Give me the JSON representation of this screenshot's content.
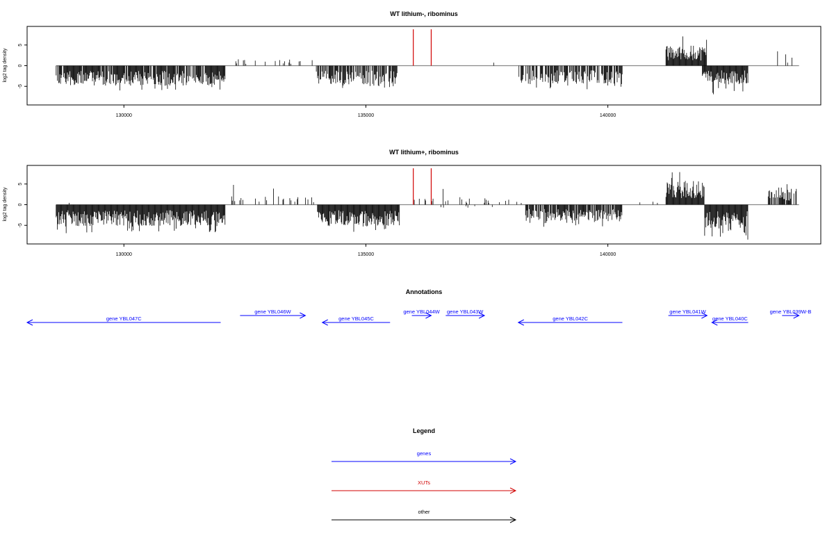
{
  "chart_data": [
    {
      "type": "bar",
      "title": "WT lithium-, ribominus",
      "xlabel": "",
      "ylabel": "log2 tag density",
      "xlim": [
        128000,
        144400
      ],
      "ylim": [
        -9.5,
        9.5
      ],
      "x_ticks": [
        130000,
        135000,
        140000
      ],
      "x_tick_labels": [
        "130000",
        "135000",
        "140000"
      ],
      "y_ticks": [
        -5,
        0,
        5
      ],
      "y_tick_labels": [
        "-5",
        "0",
        "5"
      ],
      "grid": false,
      "segments": [
        {
          "from": 128600,
          "to": 132100,
          "sign": -1,
          "amp": 4.2,
          "spike": 6.0,
          "density": 6
        },
        {
          "from": 128900,
          "to": 128950,
          "sign": 1,
          "amp": 1.5,
          "spike": 1.6,
          "density": 1
        },
        {
          "from": 132300,
          "to": 133900,
          "sign": 1,
          "amp": 1.4,
          "spike": 3.0,
          "density": 0.9
        },
        {
          "from": 133950,
          "to": 135650,
          "sign": -1,
          "amp": 4.0,
          "spike": 5.5,
          "density": 5
        },
        {
          "from": 136400,
          "to": 137700,
          "sign": 1,
          "amp": 0.8,
          "spike": 2.8,
          "density": 0.15
        },
        {
          "from": 138150,
          "to": 140300,
          "sign": -1,
          "amp": 3.8,
          "spike": 6.0,
          "density": 5
        },
        {
          "from": 138550,
          "to": 138600,
          "sign": 1,
          "amp": 2.0,
          "spike": 2.2,
          "density": 1
        },
        {
          "from": 141200,
          "to": 142050,
          "sign": 1,
          "amp": 4.2,
          "spike": 7.5,
          "density": 8
        },
        {
          "from": 141950,
          "to": 142900,
          "sign": -1,
          "amp": 3.8,
          "spike": 7.0,
          "density": 7
        },
        {
          "from": 143300,
          "to": 143900,
          "sign": 1,
          "amp": 2.4,
          "spike": 3.6,
          "density": 0.5
        }
      ],
      "highlights": [
        {
          "x": 135980,
          "value": 8.8
        },
        {
          "x": 136350,
          "value": 8.8
        }
      ],
      "highlight_color": "#d00000",
      "bar_color": "#000000",
      "baseline_color": "#888888"
    },
    {
      "type": "bar",
      "title": "WT lithium+, ribominus",
      "xlabel": "",
      "ylabel": "log2 tag density",
      "xlim": [
        128000,
        144400
      ],
      "ylim": [
        -9.5,
        9.5
      ],
      "x_ticks": [
        130000,
        135000,
        140000
      ],
      "x_tick_labels": [
        "130000",
        "135000",
        "140000"
      ],
      "y_ticks": [
        -5,
        0,
        5
      ],
      "y_tick_labels": [
        "-5",
        "0",
        "5"
      ],
      "grid": false,
      "segments": [
        {
          "from": 128600,
          "to": 132100,
          "sign": -1,
          "amp": 4.5,
          "spike": 7.0,
          "density": 7
        },
        {
          "from": 128700,
          "to": 129400,
          "sign": 1,
          "amp": 1.0,
          "spike": 2.2,
          "density": 0.3
        },
        {
          "from": 132200,
          "to": 134000,
          "sign": 1,
          "amp": 1.8,
          "spike": 5.0,
          "density": 1.2
        },
        {
          "from": 134000,
          "to": 135700,
          "sign": -1,
          "amp": 4.5,
          "spike": 7.0,
          "density": 7
        },
        {
          "from": 136000,
          "to": 138400,
          "sign": 1,
          "amp": 1.4,
          "spike": 4.5,
          "density": 0.8
        },
        {
          "from": 136500,
          "to": 138000,
          "sign": -1,
          "amp": 0.8,
          "spike": 1.6,
          "density": 0.2
        },
        {
          "from": 138300,
          "to": 140300,
          "sign": -1,
          "amp": 3.5,
          "spike": 5.5,
          "density": 6
        },
        {
          "from": 140300,
          "to": 141100,
          "sign": 1,
          "amp": 0.8,
          "spike": 1.4,
          "density": 0.4
        },
        {
          "from": 141200,
          "to": 142000,
          "sign": 1,
          "amp": 5.0,
          "spike": 8.5,
          "density": 10
        },
        {
          "from": 142000,
          "to": 142900,
          "sign": -1,
          "amp": 5.0,
          "spike": 8.5,
          "density": 10
        },
        {
          "from": 143300,
          "to": 143900,
          "sign": 1,
          "amp": 3.2,
          "spike": 5.0,
          "density": 5
        }
      ],
      "highlights": [
        {
          "x": 135980,
          "value": 8.8
        },
        {
          "x": 136350,
          "value": 8.8
        }
      ],
      "highlight_color": "#d00000",
      "bar_color": "#000000",
      "baseline_color": "#888888"
    }
  ],
  "annotations": {
    "title": "Annotations",
    "color": "#0000ff",
    "xlim": [
      128000,
      144400
    ],
    "genes": [
      {
        "name": "gene YBL047C",
        "from": 128000,
        "to": 132000,
        "strand": "-",
        "row": 1
      },
      {
        "name": "gene YBL046W",
        "from": 132400,
        "to": 133750,
        "strand": "+",
        "row": 0
      },
      {
        "name": "gene YBL045C",
        "from": 134100,
        "to": 135500,
        "strand": "-",
        "row": 1
      },
      {
        "name": "gene YBL044W",
        "from": 135950,
        "to": 136350,
        "strand": "+",
        "row": 0
      },
      {
        "name": "gene YBL043W",
        "from": 136650,
        "to": 137450,
        "strand": "+",
        "row": 0
      },
      {
        "name": "gene YBL042C",
        "from": 138150,
        "to": 140300,
        "strand": "-",
        "row": 1
      },
      {
        "name": "gene YBL041W",
        "from": 141250,
        "to": 142050,
        "strand": "+",
        "row": 0
      },
      {
        "name": "gene YBL040C",
        "from": 142150,
        "to": 142900,
        "strand": "-",
        "row": 1
      },
      {
        "name": "gene YBL039W-B",
        "from": 143600,
        "to": 143950,
        "strand": "+",
        "row": 0
      }
    ]
  },
  "legend": {
    "title": "Legend",
    "items": [
      {
        "label": "genes",
        "color": "#0000ff"
      },
      {
        "label": "XUTs",
        "color": "#d00000"
      },
      {
        "label": "other",
        "color": "#000000"
      }
    ]
  }
}
